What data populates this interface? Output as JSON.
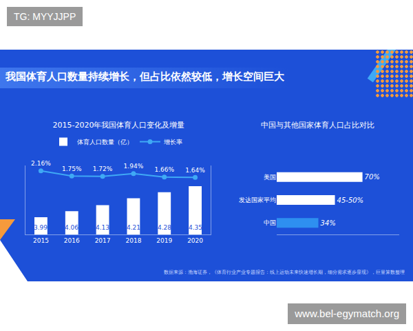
{
  "watermarks": [
    "TG: MYYJJPP",
    "www.bel-egymatch.org"
  ],
  "title": "我国体育人口数量持续增长，但占比依然较低，增长空间巨大",
  "source": "数据来源：渤海证券，《体育行业产业专题报告：线上运动未来快速增长期，细分需求逐步显现》，巨量算数整理",
  "chart_data": [
    {
      "type": "bar",
      "title": "2015-2020年我国体育人口变化及增量",
      "categories": [
        "2015",
        "2016",
        "2017",
        "2018",
        "2019",
        "2020"
      ],
      "series": [
        {
          "name": "体育人口数量（亿）",
          "type": "bar",
          "color": "#ffffff",
          "values": [
            3.99,
            4.06,
            4.13,
            4.21,
            4.28,
            4.35
          ],
          "data_labels": true
        },
        {
          "name": "增长率",
          "type": "line",
          "color": "#3fa9f5",
          "marker": "circle",
          "axis": "y2",
          "values": [
            2.16,
            1.75,
            1.72,
            1.94,
            1.66,
            1.64
          ],
          "value_labels": [
            "2.16%",
            "1.75%",
            "1.72%",
            "1.94%",
            "1.66%",
            "1.64%"
          ],
          "data_labels": true
        }
      ],
      "ylim": [
        3.79,
        4.59
      ],
      "y2lim": [
        -3,
        2.6
      ],
      "tick_labels": "x",
      "legend": "top",
      "grid": false
    },
    {
      "type": "bar",
      "orientation": "horizontal",
      "title": "中国与其他国家体育人口占比对比",
      "categories": [
        "美国",
        "发达国家平均",
        "中国"
      ],
      "values": [
        70,
        47.5,
        34
      ],
      "value_labels": [
        "70%",
        "45-50%",
        "34%"
      ],
      "colors": [
        "#ffffff",
        "#ffffff",
        "#2e8ff0"
      ],
      "xlim": [
        0,
        100
      ],
      "tick_labels": "y",
      "data_labels": true,
      "grid": false
    }
  ]
}
